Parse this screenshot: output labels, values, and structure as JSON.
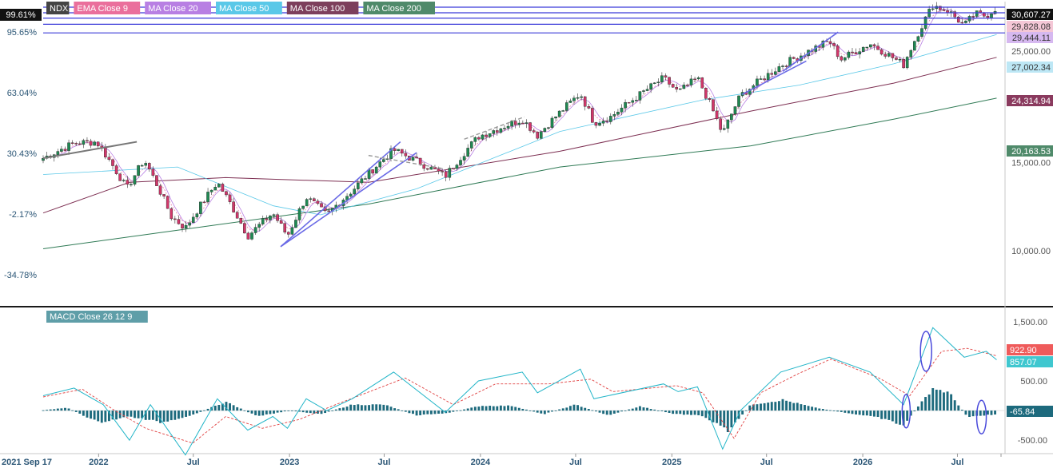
{
  "legend": [
    {
      "label": "NDX",
      "color": "#444444"
    },
    {
      "label": "EMA Close 9",
      "color": "#ea6f9c"
    },
    {
      "label": "MA Close 20",
      "color": "#b87fe3"
    },
    {
      "label": "MA Close 50",
      "color": "#5ac8e8"
    },
    {
      "label": "MA Close 100",
      "color": "#7d3f5c"
    },
    {
      "label": "MA Close 200",
      "color": "#4f8a6a"
    }
  ],
  "macd_legend": {
    "label": "MACD Close 26 12 9",
    "color": "#5f9ea8"
  },
  "colors": {
    "up": "#1f8a53",
    "down": "#d2366b",
    "hline": "#3b3bd9",
    "channel": "#6a6ae6",
    "ema9": "#ea6f9c",
    "ma20": "#b87fe3",
    "ma50": "#5ac8e8",
    "ma100": "#7d2f52",
    "ma200": "#2f7a55",
    "macd": "#22b5c8",
    "signal": "#e04040",
    "hist": "#1d6a7d"
  },
  "percent_labels": [
    "99.61%",
    "95.65%",
    "63.04%",
    "30.43%",
    "-2.17%",
    "-34.78%"
  ],
  "price_tags": [
    {
      "label": "30,607.27",
      "bg": "#111111",
      "fg": "#ffffff"
    },
    {
      "label": "29,828.08",
      "bg": "#f4c7d6",
      "fg": "#333333"
    },
    {
      "label": "29,444.11",
      "bg": "#d6b8f0",
      "fg": "#333333"
    },
    {
      "label": "27,002.34",
      "bg": "#bde7f5",
      "fg": "#333333"
    },
    {
      "label": "24,314.94",
      "bg": "#8a3a5e",
      "fg": "#ffffff"
    },
    {
      "label": "20,163.53",
      "bg": "#4f8a6a",
      "fg": "#ffffff"
    }
  ],
  "price_ticks": [
    "25,000.00",
    "15,000.00",
    "10,000.00"
  ],
  "macd_ticks": [
    "1,500.00",
    "500.00",
    "-500.00"
  ],
  "macd_tags": [
    {
      "label": "922.90",
      "bg": "#ef5b5b",
      "fg": "#ffffff"
    },
    {
      "label": "857.07",
      "bg": "#3fc7cf",
      "fg": "#ffffff"
    },
    {
      "label": "-65.84",
      "bg": "#1d6a7d",
      "fg": "#ffffff"
    }
  ],
  "x_labels": [
    "2021 Sep 17",
    "2022",
    "Jul",
    "2023",
    "Jul",
    "2024",
    "Jul",
    "2025",
    "Jul",
    "2026",
    "Jul"
  ],
  "chart_data": {
    "type": "line",
    "title": "NDX",
    "y_scale": "log",
    "x_range": [
      "2021-09-17",
      "2026-09-30"
    ],
    "price_range": [
      7800,
      31400
    ],
    "price_series": [
      [
        "2021-09-17",
        15300
      ],
      [
        "2021-11-15",
        16400
      ],
      [
        "2021-12-28",
        16500
      ],
      [
        "2022-02-24",
        13300
      ],
      [
        "2022-03-29",
        15200
      ],
      [
        "2022-05-20",
        11700
      ],
      [
        "2022-06-16",
        11100
      ],
      [
        "2022-08-16",
        13700
      ],
      [
        "2022-10-13",
        10700
      ],
      [
        "2022-11-30",
        11900
      ],
      [
        "2022-12-28",
        10700
      ],
      [
        "2023-02-02",
        12800
      ],
      [
        "2023-03-13",
        11800
      ],
      [
        "2023-05-01",
        13200
      ],
      [
        "2023-07-19",
        15900
      ],
      [
        "2023-10-26",
        14100
      ],
      [
        "2023-12-28",
        16900
      ],
      [
        "2024-03-21",
        18300
      ],
      [
        "2024-04-19",
        17000
      ],
      [
        "2024-07-10",
        20600
      ],
      [
        "2024-08-05",
        18000
      ],
      [
        "2024-09-06",
        18500
      ],
      [
        "2024-12-16",
        22100
      ],
      [
        "2025-01-13",
        20700
      ],
      [
        "2025-02-19",
        22100
      ],
      [
        "2025-04-08",
        17100
      ],
      [
        "2025-05-12",
        20400
      ],
      [
        "2025-07-28",
        23400
      ],
      [
        "2025-10-29",
        26200
      ],
      [
        "2025-11-20",
        24100
      ],
      [
        "2026-01-15",
        25900
      ],
      [
        "2026-03-20",
        23500
      ],
      [
        "2026-05-15",
        30900
      ],
      [
        "2026-06-15",
        30000
      ],
      [
        "2026-07-14",
        28100
      ],
      [
        "2026-08-03",
        29700
      ],
      [
        "2026-08-25",
        29400
      ],
      [
        "2026-09-14",
        30600
      ]
    ],
    "ma200": [
      [
        "2021-09-17",
        10100
      ],
      [
        "2022-06-01",
        11000
      ],
      [
        "2023-06-01",
        12400
      ],
      [
        "2024-06-01",
        14700
      ],
      [
        "2025-06-01",
        16200
      ],
      [
        "2026-03-01",
        18300
      ],
      [
        "2026-09-14",
        20163.53
      ]
    ],
    "ma100": [
      [
        "2021-09-17",
        11900
      ],
      [
        "2022-03-01",
        13700
      ],
      [
        "2022-09-01",
        14000
      ],
      [
        "2023-06-01",
        13700
      ],
      [
        "2024-06-01",
        15800
      ],
      [
        "2025-06-01",
        19000
      ],
      [
        "2026-03-01",
        21600
      ],
      [
        "2026-09-14",
        24314.94
      ]
    ],
    "ma50": [
      [
        "2021-09-17",
        14200
      ],
      [
        "2022-06-01",
        14700
      ],
      [
        "2022-12-01",
        12300
      ],
      [
        "2023-03-01",
        11800
      ],
      [
        "2023-09-01",
        13300
      ],
      [
        "2024-06-01",
        17300
      ],
      [
        "2025-03-01",
        20000
      ],
      [
        "2025-09-01",
        21400
      ],
      [
        "2026-03-01",
        23600
      ],
      [
        "2026-09-14",
        27002.34
      ]
    ],
    "horizontal_levels": [
      30607.27,
      29828.08,
      29100,
      28300,
      27200
    ],
    "macd_range": [
      -700,
      1700
    ],
    "macd": [
      [
        "2021-09-17",
        250
      ],
      [
        "2021-11-15",
        380
      ],
      [
        "2022-01-10",
        100
      ],
      [
        "2022-03-01",
        -500
      ],
      [
        "2022-04-10",
        100
      ],
      [
        "2022-06-16",
        -750
      ],
      [
        "2022-08-16",
        200
      ],
      [
        "2022-10-13",
        -330
      ],
      [
        "2022-11-30",
        -100
      ],
      [
        "2022-12-28",
        -300
      ],
      [
        "2023-02-02",
        200
      ],
      [
        "2023-03-13",
        0
      ],
      [
        "2023-05-01",
        200
      ],
      [
        "2023-07-19",
        650
      ],
      [
        "2023-10-26",
        -30
      ],
      [
        "2023-12-28",
        500
      ],
      [
        "2024-03-21",
        650
      ],
      [
        "2024-04-19",
        300
      ],
      [
        "2024-07-10",
        700
      ],
      [
        "2024-08-05",
        200
      ],
      [
        "2024-12-16",
        450
      ],
      [
        "2025-01-13",
        320
      ],
      [
        "2025-02-19",
        400
      ],
      [
        "2025-04-08",
        -650
      ],
      [
        "2025-05-12",
        0
      ],
      [
        "2025-07-28",
        650
      ],
      [
        "2025-10-29",
        900
      ],
      [
        "2026-01-15",
        650
      ],
      [
        "2026-03-20",
        100
      ],
      [
        "2026-05-15",
        1400
      ],
      [
        "2026-07-14",
        900
      ],
      [
        "2026-08-25",
        1000
      ],
      [
        "2026-09-14",
        857.07
      ]
    ],
    "signal": [
      [
        "2021-09-17",
        230
      ],
      [
        "2021-12-01",
        360
      ],
      [
        "2022-02-01",
        0
      ],
      [
        "2022-04-01",
        -300
      ],
      [
        "2022-06-30",
        -550
      ],
      [
        "2022-09-01",
        -100
      ],
      [
        "2022-11-10",
        -300
      ],
      [
        "2023-01-20",
        -150
      ],
      [
        "2023-03-30",
        100
      ],
      [
        "2023-08-10",
        550
      ],
      [
        "2023-11-10",
        100
      ],
      [
        "2024-01-30",
        450
      ],
      [
        "2024-05-10",
        450
      ],
      [
        "2024-07-30",
        530
      ],
      [
        "2024-09-10",
        320
      ],
      [
        "2025-01-10",
        420
      ],
      [
        "2025-03-01",
        300
      ],
      [
        "2025-04-30",
        -470
      ],
      [
        "2025-06-20",
        300
      ],
      [
        "2025-08-30",
        620
      ],
      [
        "2025-11-01",
        870
      ],
      [
        "2026-02-01",
        550
      ],
      [
        "2026-04-01",
        250
      ],
      [
        "2026-06-01",
        1000
      ],
      [
        "2026-07-20",
        1050
      ],
      [
        "2026-09-14",
        922.9
      ]
    ],
    "macd_histogram": [
      [
        "2021-09-17",
        5
      ],
      [
        "2021-11-01",
        50
      ],
      [
        "2022-01-01",
        -200
      ],
      [
        "2022-03-01",
        -100
      ],
      [
        "2022-05-01",
        -200
      ],
      [
        "2022-07-01",
        -70
      ],
      [
        "2022-09-01",
        150
      ],
      [
        "2022-11-01",
        -100
      ],
      [
        "2023-01-01",
        0
      ],
      [
        "2023-03-01",
        -60
      ],
      [
        "2023-05-01",
        100
      ],
      [
        "2023-07-01",
        100
      ],
      [
        "2023-09-01",
        -80
      ],
      [
        "2023-11-01",
        -40
      ],
      [
        "2024-01-01",
        80
      ],
      [
        "2024-03-01",
        80
      ],
      [
        "2024-05-01",
        -60
      ],
      [
        "2024-07-01",
        100
      ],
      [
        "2024-09-01",
        -80
      ],
      [
        "2024-11-01",
        70
      ],
      [
        "2025-01-01",
        -50
      ],
      [
        "2025-03-01",
        -90
      ],
      [
        "2025-04-20",
        -350
      ],
      [
        "2025-06-01",
        100
      ],
      [
        "2025-08-01",
        180
      ],
      [
        "2025-10-01",
        50
      ],
      [
        "2025-12-01",
        -40
      ],
      [
        "2026-02-01",
        -120
      ],
      [
        "2026-03-20",
        -250
      ],
      [
        "2026-05-15",
        380
      ],
      [
        "2026-06-15",
        300
      ],
      [
        "2026-07-20",
        -100
      ],
      [
        "2026-09-14",
        -65.84
      ]
    ]
  }
}
